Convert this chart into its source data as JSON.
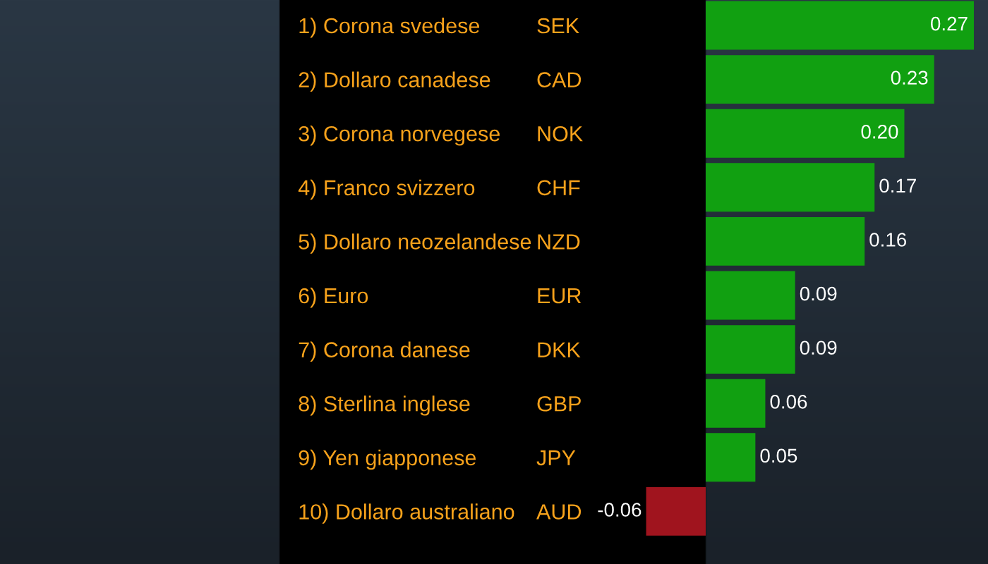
{
  "chart_data": {
    "type": "bar",
    "orientation": "horizontal",
    "categories": [
      "1) Corona svedese",
      "2) Dollaro canadese",
      "3) Corona norvegese",
      "4) Franco svizzero",
      "5) Dollaro neozelandese",
      "6) Euro",
      "7) Corona danese",
      "8) Sterlina inglese",
      "9) Yen giapponese",
      "10) Dollaro australiano"
    ],
    "y2_categories": [
      "SEK",
      "CAD",
      "NOK",
      "CHF",
      "NZD",
      "EUR",
      "DKK",
      "GBP",
      "JPY",
      "AUD"
    ],
    "values": [
      0.27,
      0.23,
      0.2,
      0.17,
      0.16,
      0.09,
      0.09,
      0.06,
      0.05,
      -0.06
    ],
    "colors": [
      "#11a011",
      "#11a011",
      "#11a011",
      "#11a011",
      "#11a011",
      "#11a011",
      "#11a011",
      "#11a011",
      "#11a011",
      "#a0141e"
    ],
    "value_labels": [
      "0.27",
      "0.23",
      "0.20",
      "0.17",
      "0.16",
      "0.09",
      "0.09",
      "0.06",
      "0.05",
      "-0.06"
    ],
    "grid": false,
    "legend": false
  }
}
